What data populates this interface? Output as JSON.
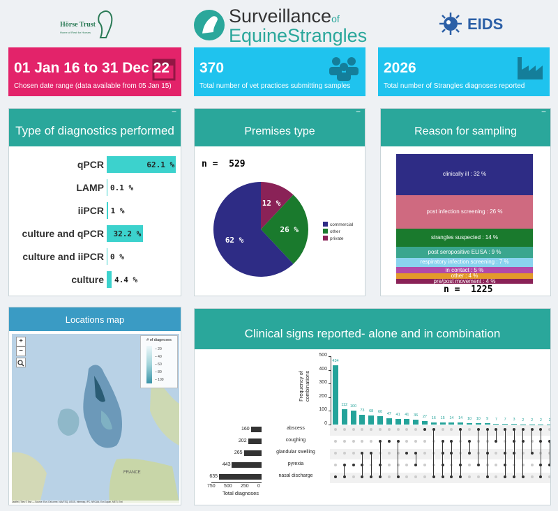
{
  "header": {
    "left_logo": {
      "name": "Hörse Trust",
      "tagline": "Home of Rest for Horses"
    },
    "title_line1": "Surveillance",
    "title_of": "of",
    "title_line2a": "Equine",
    "title_line2b": "Strangles",
    "right_logo": "EIDS"
  },
  "value_boxes": [
    {
      "value": "01 Jan 16 to 31 Dec 22",
      "caption": "Chosen date range (data available from 05 Jan 15)",
      "color": "#e3236a",
      "icon": "calendar-icon"
    },
    {
      "value": "370",
      "caption": "Total number of vet practices submitting samples",
      "color": "#1fc3ee",
      "icon": "people-icon"
    },
    {
      "value": "2026",
      "caption": "Total number of Strangles diagnoses reported",
      "color": "#1fc3ee",
      "icon": "industry-icon"
    }
  ],
  "diagnostics": {
    "title": "Type of diagnostics performed",
    "collapse": "−",
    "items": [
      {
        "label": "qPCR",
        "value": 62.1,
        "text": "62.1 %"
      },
      {
        "label": "LAMP",
        "value": 0.1,
        "text": "0.1 %"
      },
      {
        "label": "iiPCR",
        "value": 1,
        "text": "1 %"
      },
      {
        "label": "culture and qPCR",
        "value": 32.2,
        "text": "32.2 %"
      },
      {
        "label": "culture and iiPCR",
        "value": 0,
        "text": "0 %"
      },
      {
        "label": "culture",
        "value": 4.4,
        "text": "4.4 %"
      }
    ],
    "bar_color": "#3cd2cd"
  },
  "premises": {
    "title": "Premises type",
    "collapse": "−",
    "n_text": "n =  529",
    "slices": [
      {
        "name": "commercial",
        "value": 62,
        "label": "62 %",
        "color": "#2e2c85"
      },
      {
        "name": "other",
        "value": 26,
        "label": "26 %",
        "color": "#1a7a2d"
      },
      {
        "name": "private",
        "value": 12,
        "label": "12 %",
        "color": "#8a2257"
      }
    ]
  },
  "reason": {
    "title": "Reason for sampling",
    "collapse": "−",
    "n_text": "n =  1225",
    "bands": [
      {
        "label": "clinically ill : 32 %",
        "value": 32,
        "color": "#2e2c85"
      },
      {
        "label": "post infection screening : 26 %",
        "value": 26,
        "color": "#cf6a80"
      },
      {
        "label": "strangles suspected : 14 %",
        "value": 14,
        "color": "#1a7a2d"
      },
      {
        "label": "post seropositive ELISA : 9 %",
        "value": 9,
        "color": "#3aa68e"
      },
      {
        "label": "respiratory infection screening : 7 %",
        "value": 7,
        "color": "#8ad3ee"
      },
      {
        "label": "in contact : 5 %",
        "value": 5,
        "color": "#b24aa8"
      },
      {
        "label": "other : 4 %",
        "value": 4,
        "color": "#e39a2a"
      },
      {
        "label": "pre/post movement : 4 %",
        "value": 4,
        "color": "#8a2257"
      }
    ]
  },
  "map": {
    "title": "Locations map",
    "zoom_in": "+",
    "zoom_out": "−",
    "search": "search-icon",
    "legend_title": "# of diagnoses",
    "legend_ticks": [
      "20",
      "40",
      "60",
      "80",
      "100"
    ],
    "attribution": "Leaflet | Tiles © Esri — Source: Esri, DeLorme, NAVTEQ, USGS, Intermap, iPC, NRCAN, Esri Japan, METI, Esri",
    "place_label": "FRANCE"
  },
  "chart_data": {
    "type": "bar",
    "title": "Clinical signs reported- alone and in combination",
    "ylabel": "Frequency of combinations",
    "xlabel": "Total diagnoses",
    "ylim": [
      0,
      500
    ],
    "yticks": [
      0,
      100,
      200,
      300,
      400,
      500
    ],
    "intersections": [
      434,
      112,
      100,
      73,
      68,
      60,
      47,
      41,
      41,
      36,
      27,
      16,
      15,
      14,
      14,
      10,
      10,
      9,
      7,
      7,
      3,
      2,
      2,
      2,
      2,
      1
    ],
    "intersection_labels": [
      "434",
      "112",
      "100",
      "73",
      "68",
      "60",
      "47",
      "41",
      "41",
      "36",
      "27",
      "16",
      "15",
      "14",
      "14",
      "10",
      "10",
      "9",
      "7",
      "7",
      "3",
      "2",
      "2",
      "2",
      "2",
      "1"
    ],
    "sets": [
      {
        "name": "abscess",
        "total": 160
      },
      {
        "name": "coughing",
        "total": 202
      },
      {
        "name": "glandular swelling",
        "total": 265
      },
      {
        "name": "pyrexia",
        "total": 443
      },
      {
        "name": "nasal discharge",
        "total": 635
      }
    ],
    "set_axis_ticks": [
      "750",
      "500",
      "250",
      "0"
    ]
  }
}
